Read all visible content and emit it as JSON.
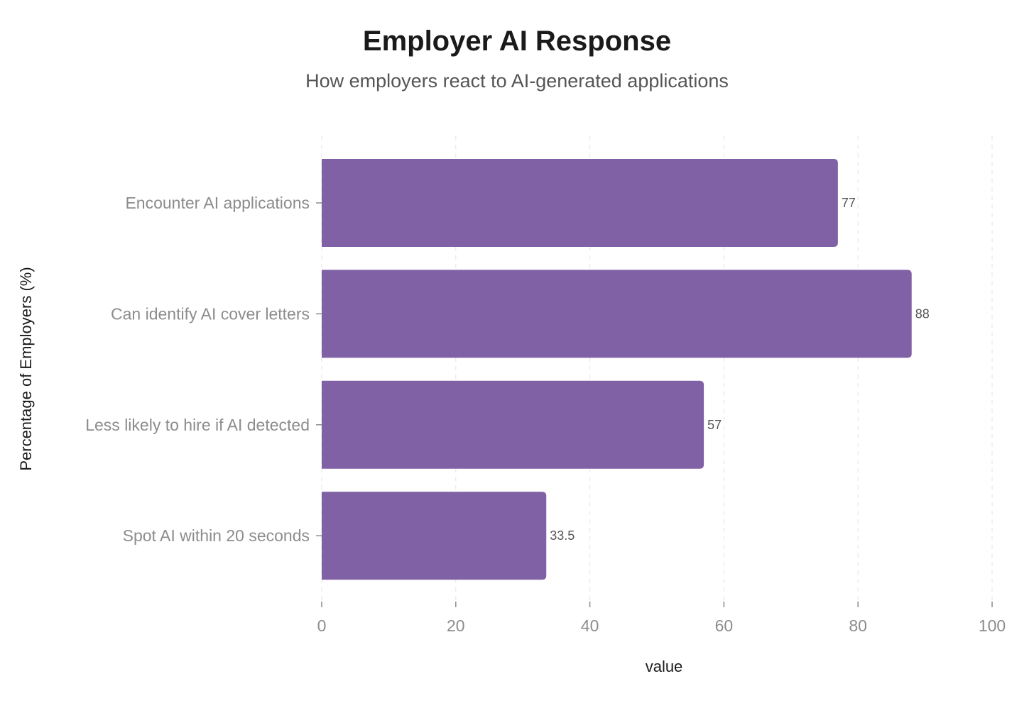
{
  "chart_data": {
    "type": "bar",
    "orientation": "horizontal",
    "title": "Employer AI Response",
    "subtitle": "How employers react to AI-generated applications",
    "xlabel": "value",
    "ylabel": "Percentage of Employers (%)",
    "categories": [
      "Encounter AI applications",
      "Can identify AI cover letters",
      "Less likely to hire if AI detected",
      "Spot AI within 20 seconds"
    ],
    "values": [
      77,
      88,
      57,
      33.5
    ],
    "data_labels": [
      "77",
      "88",
      "57",
      "33.5"
    ],
    "xlim": [
      0,
      100
    ],
    "xticks": [
      0,
      20,
      40,
      60,
      80,
      100
    ],
    "grid": "vertical dashed",
    "bar_color": "#8061a6",
    "legend": "none"
  }
}
